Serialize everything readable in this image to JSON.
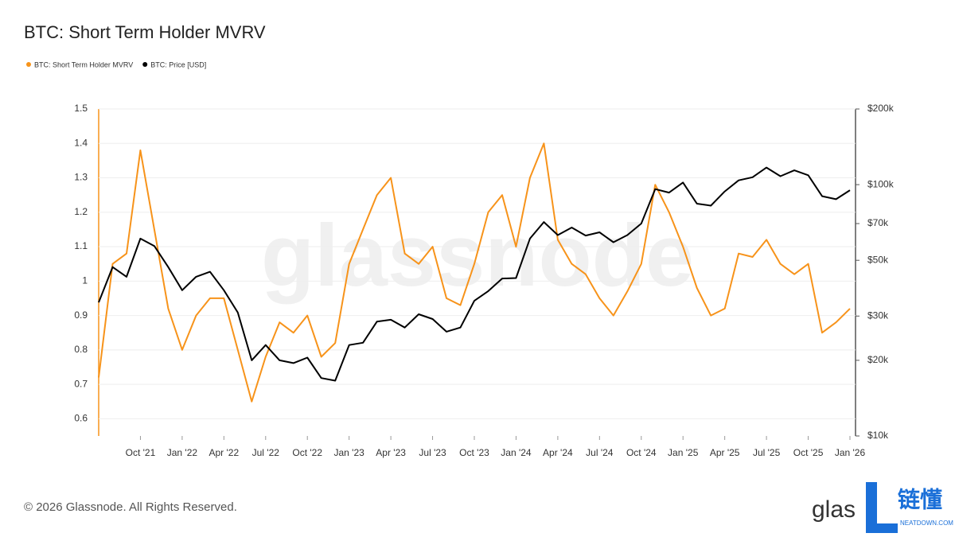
{
  "chart_data": {
    "type": "line",
    "title": "BTC: Short Term Holder MVRV",
    "x": [
      "2021-07",
      "2021-08",
      "2021-09",
      "2021-10",
      "2021-11",
      "2021-12",
      "2022-01",
      "2022-02",
      "2022-03",
      "2022-04",
      "2022-05",
      "2022-06",
      "2022-07",
      "2022-08",
      "2022-09",
      "2022-10",
      "2022-11",
      "2022-12",
      "2023-01",
      "2023-02",
      "2023-03",
      "2023-04",
      "2023-05",
      "2023-06",
      "2023-07",
      "2023-08",
      "2023-09",
      "2023-10",
      "2023-11",
      "2023-12",
      "2024-01",
      "2024-02",
      "2024-03",
      "2024-04",
      "2024-05",
      "2024-06",
      "2024-07",
      "2024-08",
      "2024-09",
      "2024-10",
      "2024-11",
      "2024-12",
      "2025-01",
      "2025-02",
      "2025-03",
      "2025-04",
      "2025-05",
      "2025-06",
      "2025-07",
      "2025-08",
      "2025-09",
      "2025-10",
      "2025-11",
      "2025-12",
      "2026-01"
    ],
    "series": [
      {
        "name": "BTC: Short Term Holder MVRV",
        "color": "#f7931a",
        "axis": "y",
        "values": [
          0.72,
          1.05,
          1.08,
          1.38,
          1.15,
          0.92,
          0.8,
          0.9,
          0.95,
          0.95,
          0.8,
          0.65,
          0.78,
          0.88,
          0.85,
          0.9,
          0.78,
          0.82,
          1.05,
          1.15,
          1.25,
          1.3,
          1.08,
          1.05,
          1.1,
          0.95,
          0.93,
          1.05,
          1.2,
          1.25,
          1.1,
          1.3,
          1.4,
          1.12,
          1.05,
          1.02,
          0.95,
          0.9,
          0.97,
          1.05,
          1.28,
          1.2,
          1.1,
          0.98,
          0.9,
          0.92,
          1.08,
          1.07,
          1.12,
          1.05,
          1.02,
          1.05,
          0.85,
          0.88,
          0.92
        ]
      },
      {
        "name": "BTC: Price [USD]",
        "color": "#000000",
        "axis": "y2",
        "values": [
          34000,
          47000,
          43000,
          61000,
          57000,
          47000,
          38000,
          43000,
          45000,
          38000,
          31000,
          20000,
          23000,
          20000,
          19500,
          20500,
          17000,
          16600,
          23000,
          23500,
          28500,
          29000,
          27000,
          30500,
          29200,
          26000,
          27000,
          34500,
          37700,
          42300,
          42500,
          61000,
          71000,
          63000,
          67500,
          62700,
          64600,
          59000,
          63000,
          70000,
          96000,
          93000,
          102000,
          84000,
          82500,
          94000,
          104000,
          107000,
          117000,
          108000,
          114000,
          109000,
          90000,
          87500,
          95000
        ]
      }
    ],
    "xlim": [
      "2021-07",
      "2026-01"
    ],
    "xticks": [
      {
        "value": "2021-10",
        "label": "Oct '21"
      },
      {
        "value": "2022-01",
        "label": "Jan '22"
      },
      {
        "value": "2022-04",
        "label": "Apr '22"
      },
      {
        "value": "2022-07",
        "label": "Jul '22"
      },
      {
        "value": "2022-10",
        "label": "Oct '22"
      },
      {
        "value": "2023-01",
        "label": "Jan '23"
      },
      {
        "value": "2023-04",
        "label": "Apr '23"
      },
      {
        "value": "2023-07",
        "label": "Jul '23"
      },
      {
        "value": "2023-10",
        "label": "Oct '23"
      },
      {
        "value": "2024-01",
        "label": "Jan '24"
      },
      {
        "value": "2024-04",
        "label": "Apr '24"
      },
      {
        "value": "2024-07",
        "label": "Jul '24"
      },
      {
        "value": "2024-10",
        "label": "Oct '24"
      },
      {
        "value": "2025-01",
        "label": "Jan '25"
      },
      {
        "value": "2025-04",
        "label": "Apr '25"
      },
      {
        "value": "2025-07",
        "label": "Jul '25"
      },
      {
        "value": "2025-10",
        "label": "Oct '25"
      },
      {
        "value": "2026-01",
        "label": "Jan '26"
      }
    ],
    "ylim": [
      0.55,
      1.5
    ],
    "yticks": [
      0.6,
      0.7,
      0.8,
      0.9,
      1,
      1.1,
      1.2,
      1.3,
      1.4,
      1.5
    ],
    "y2lim": [
      10000,
      200000
    ],
    "y2scale": "log",
    "y2ticks": [
      {
        "value": 10000,
        "label": "$10k"
      },
      {
        "value": 20000,
        "label": "$20k"
      },
      {
        "value": 30000,
        "label": "$30k"
      },
      {
        "value": 50000,
        "label": "$50k"
      },
      {
        "value": 70000,
        "label": "$70k"
      },
      {
        "value": 100000,
        "label": "$100k"
      },
      {
        "value": 200000,
        "label": "$200k"
      }
    ],
    "grid": true,
    "legend": "top-left",
    "watermark": "glassnode"
  },
  "footer": {
    "copyright": "© 2026 Glassnode. All Rights Reserved.",
    "logo": "glas",
    "brand": "链懂",
    "brand_sub": "NEATDOWN.COM"
  }
}
